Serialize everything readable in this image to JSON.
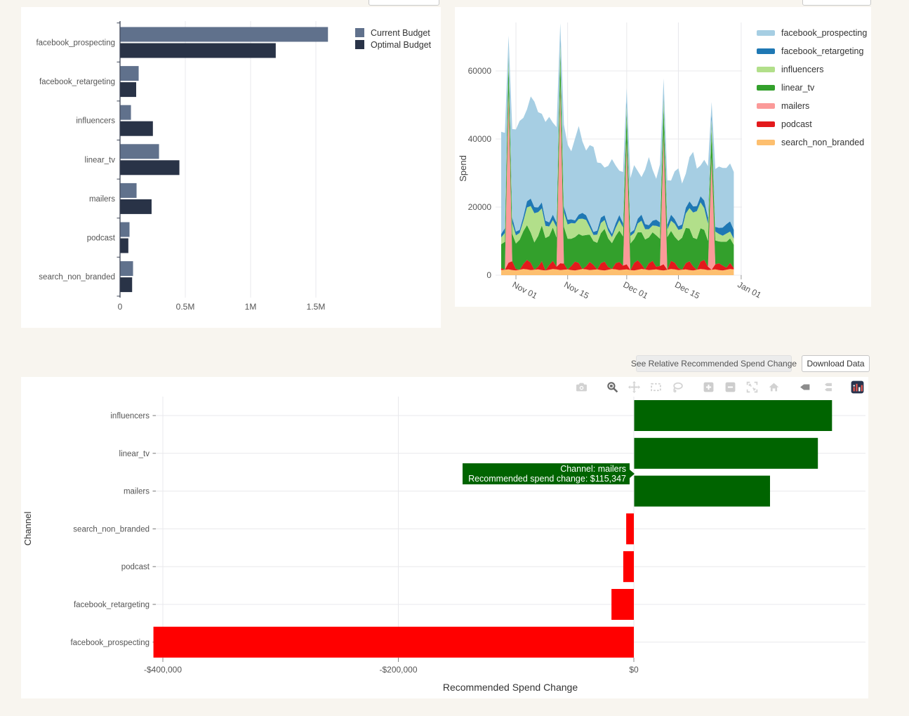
{
  "page": {
    "background": "#f8f5ef",
    "panel_background": "#ffffff",
    "gridline_color": "#e8e8ec"
  },
  "controls": {
    "relative_button_label": "See Relative Recommended Spend Change",
    "download_button_label": "Download Data"
  },
  "tooltip": {
    "line1": "Channel: mailers",
    "line2": "Recommended spend change: $115,347",
    "background": "#006400"
  },
  "modebar_icons": [
    "camera",
    "zoom",
    "pan",
    "box-select",
    "lasso-select",
    "zoom-in",
    "zoom-out",
    "autoscale",
    "reset-home",
    "hover-closest",
    "hover-compare",
    "plotly-logo"
  ],
  "chart_data": [
    {
      "id": "budget-comparison",
      "type": "bar",
      "orientation": "horizontal",
      "categories": [
        "facebook_prospecting",
        "facebook_retargeting",
        "influencers",
        "linear_tv",
        "mailers",
        "podcast",
        "search_non_branded"
      ],
      "series": [
        {
          "name": "Current Budget",
          "color": "#60718C",
          "values": [
            1590000,
            140000,
            81000,
            296000,
            124000,
            70000,
            97000
          ]
        },
        {
          "name": "Optimal Budget",
          "color": "#293347",
          "values": [
            1190000,
            121000,
            249000,
            452000,
            239000,
            61000,
            90000
          ]
        }
      ],
      "x_ticks": {
        "values": [
          0,
          500000,
          1000000,
          1500000
        ],
        "labels": [
          "0",
          "0.5M",
          "1M",
          "1.5M"
        ]
      },
      "xlim": [
        0,
        2400000
      ],
      "legend_position": "top-right",
      "grid": "vertical"
    },
    {
      "id": "spend-over-time",
      "type": "area",
      "stacked": true,
      "ylabel": "Spend",
      "y_ticks": [
        0,
        20000,
        40000,
        60000
      ],
      "ylim": [
        0,
        74300
      ],
      "n_days": 64,
      "x_start": "Oct 28",
      "x_ticks": [
        {
          "day": 4,
          "label": "Nov 01"
        },
        {
          "day": 18,
          "label": "Nov 15"
        },
        {
          "day": 34,
          "label": "Dec 01"
        },
        {
          "day": 48,
          "label": "Dec 15"
        },
        {
          "day": 65,
          "label": "Jan 01"
        }
      ],
      "stack_order": "bottom-to-top",
      "legend_order": "reverse-of-stack",
      "series": [
        {
          "name": "search_non_branded",
          "color": "#fdbf6f",
          "values": [
            1500,
            1600,
            1700,
            1500,
            1400,
            1600,
            1800,
            1700,
            1500,
            1600,
            1700,
            1500,
            1400,
            1600,
            1800,
            1700,
            1500,
            1600,
            1700,
            1500,
            1400,
            1600,
            1800,
            1700,
            1500,
            1600,
            1700,
            1500,
            1400,
            1600,
            1800,
            1700,
            1500,
            1600,
            1700,
            1500,
            1400,
            1600,
            1800,
            1700,
            1500,
            1600,
            1700,
            1500,
            1400,
            1600,
            1800,
            1700,
            1500,
            1600,
            1700,
            1500,
            1400,
            1600,
            1800,
            1700,
            1500,
            1600,
            1700,
            1500,
            1400,
            1600,
            1800,
            1700
          ]
        },
        {
          "name": "podcast",
          "color": "#e31a1c",
          "values": [
            600,
            0,
            2000,
            2600,
            400,
            0,
            1500,
            2800,
            2200,
            0,
            800,
            2600,
            0,
            1400,
            2400,
            800,
            2000,
            1800,
            0,
            1200,
            2600,
            2000,
            0,
            900,
            2400,
            1400,
            0,
            2000,
            2600,
            800,
            0,
            1800,
            2400,
            1200,
            1500,
            0,
            2200,
            2800,
            1400,
            0,
            2000,
            2600,
            800,
            1200,
            1800,
            0,
            2400,
            2000,
            600,
            0,
            1800,
            2600,
            1200,
            0,
            2200,
            2800,
            1000,
            0,
            1500,
            2000,
            1400,
            600,
            1800,
            400
          ]
        },
        {
          "name": "mailers",
          "color": "#fb9a99",
          "values": [
            0,
            0,
            50000,
            0,
            0,
            0,
            0,
            0,
            0,
            0,
            0,
            0,
            0,
            0,
            0,
            0,
            52000,
            0,
            0,
            0,
            0,
            0,
            0,
            0,
            0,
            0,
            0,
            0,
            0,
            0,
            0,
            0,
            0,
            0,
            36000,
            0,
            0,
            0,
            0,
            0,
            0,
            0,
            0,
            0,
            38000,
            0,
            0,
            0,
            0,
            0,
            0,
            0,
            0,
            0,
            0,
            0,
            0,
            33000,
            0,
            0,
            0,
            0,
            0,
            0
          ]
        },
        {
          "name": "linear_tv",
          "color": "#33a02c",
          "values": [
            7000,
            8200,
            9000,
            8000,
            7500,
            8800,
            9600,
            10200,
            8800,
            8000,
            9000,
            10500,
            9500,
            8500,
            9800,
            8600,
            9500,
            10800,
            9000,
            8000,
            7200,
            8500,
            9800,
            9200,
            8000,
            7000,
            7800,
            8800,
            9600,
            8400,
            7600,
            8000,
            9200,
            8600,
            8500,
            7800,
            7000,
            8200,
            9400,
            8800,
            7600,
            8400,
            9200,
            8000,
            8800,
            9600,
            8800,
            7600,
            8000,
            9400,
            10400,
            9600,
            8400,
            9000,
            9800,
            8800,
            7600,
            8200,
            7000,
            6400,
            7000,
            7600,
            7200,
            6800
          ]
        },
        {
          "name": "influencers",
          "color": "#b2df8a",
          "values": [
            2000,
            2600,
            2500,
            3200,
            2400,
            2000,
            3000,
            5200,
            7800,
            8600,
            7000,
            5000,
            3600,
            2800,
            2200,
            3000,
            3500,
            4200,
            4200,
            4600,
            4000,
            4400,
            5000,
            4400,
            2200,
            1800,
            2400,
            3000,
            2600,
            2200,
            1800,
            2400,
            3000,
            2600,
            2500,
            2200,
            1800,
            2600,
            3400,
            3000,
            2400,
            2000,
            2800,
            3400,
            2600,
            2200,
            3000,
            3800,
            3200,
            2600,
            4200,
            6000,
            7400,
            8200,
            7600,
            6400,
            5000,
            3000,
            2600,
            2200,
            1800,
            2400,
            2000,
            1800
          ]
        },
        {
          "name": "facebook_retargeting",
          "color": "#1f78b4",
          "values": [
            1000,
            1400,
            1200,
            1600,
            1100,
            900,
            1300,
            1800,
            2200,
            1800,
            1400,
            1800,
            1500,
            1200,
            1600,
            1400,
            1500,
            1800,
            1400,
            1100,
            900,
            1300,
            1700,
            1400,
            1100,
            900,
            1200,
            1600,
            1400,
            1100,
            900,
            1300,
            1600,
            1300,
            1200,
            1000,
            900,
            1400,
            1800,
            1500,
            1200,
            1400,
            1800,
            1400,
            1200,
            1500,
            1800,
            1400,
            1100,
            1300,
            1700,
            2000,
            1800,
            1500,
            1800,
            2200,
            1900,
            1600,
            1400,
            1800,
            2400,
            2800,
            3000,
            2600
          ]
        },
        {
          "name": "facebook_prospecting",
          "color": "#a6cee3",
          "values": [
            30000,
            28000,
            4000,
            26000,
            30000,
            32000,
            29000,
            27000,
            30000,
            31000,
            28000,
            26000,
            29000,
            31000,
            27000,
            28000,
            4000,
            24000,
            22000,
            20000,
            24000,
            26000,
            21000,
            19000,
            23000,
            25000,
            20000,
            16000,
            14000,
            18000,
            22000,
            17000,
            13000,
            15000,
            3500,
            16000,
            19000,
            14000,
            11000,
            16000,
            20000,
            15000,
            12000,
            17000,
            4000,
            13000,
            10000,
            14000,
            17000,
            12000,
            10000,
            13000,
            16000,
            11000,
            9000,
            12000,
            15000,
            3500,
            17000,
            18000,
            17500,
            16500,
            17000,
            17000
          ]
        }
      ]
    },
    {
      "id": "recommended-spend-change",
      "type": "bar",
      "orientation": "horizontal",
      "xlabel": "Recommended Spend Change",
      "ylabel": "Channel",
      "categories": [
        "influencers",
        "linear_tv",
        "mailers",
        "search_non_branded",
        "podcast",
        "facebook_retargeting",
        "facebook_prospecting"
      ],
      "values": [
        168000,
        156000,
        115347,
        -6500,
        -9000,
        -19000,
        -408000
      ],
      "positive_color": "#006400",
      "negative_color": "#FF0000",
      "x_ticks": {
        "values": [
          -400000,
          -200000,
          0
        ],
        "labels": [
          "-$400,000",
          "-$200,000",
          "$0"
        ]
      },
      "xlim": [
        -408000,
        199000
      ],
      "grid": "both"
    }
  ]
}
